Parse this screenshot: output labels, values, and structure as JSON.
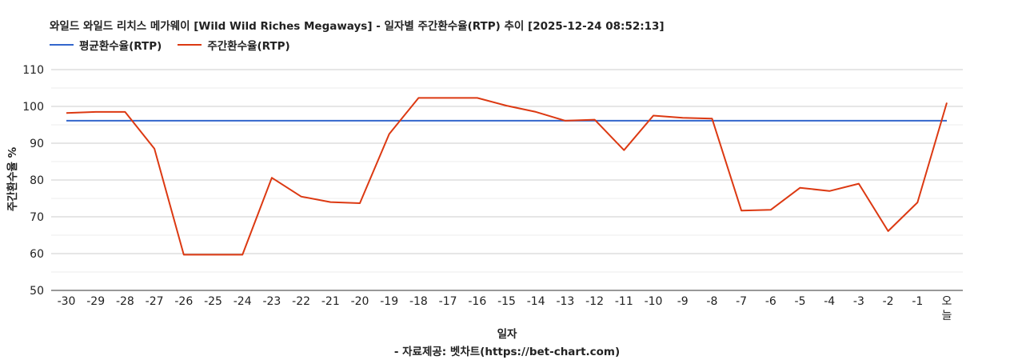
{
  "chart_data": {
    "type": "line",
    "title": "와일드 와일드 리치스 메가웨이 [Wild Wild Riches Megaways] - 일자별 주간환수율(RTP) 추이 [2025-12-24 08:52:13]",
    "xlabel": "일자",
    "ylabel": "주간환수율 %",
    "source": "- 자료제공: 벳차트(https://bet-chart.com)",
    "ylim": [
      50,
      110
    ],
    "yticks": [
      "50",
      "60",
      "70",
      "80",
      "90",
      "100",
      "110"
    ],
    "grid": true,
    "legend_position": "top-left",
    "categories": [
      "-30",
      "-29",
      "-28",
      "-27",
      "-26",
      "-25",
      "-24",
      "-23",
      "-22",
      "-21",
      "-20",
      "-19",
      "-18",
      "-17",
      "-16",
      "-15",
      "-14",
      "-13",
      "-12",
      "-11",
      "-10",
      "-9",
      "-8",
      "-7",
      "-6",
      "-5",
      "-4",
      "-3",
      "-2",
      "-1",
      "오늘"
    ],
    "series": [
      {
        "name": "평균환수율(RTP)",
        "color": "#3366cc",
        "values": [
          96.1,
          96.1,
          96.1,
          96.1,
          96.1,
          96.1,
          96.1,
          96.1,
          96.1,
          96.1,
          96.1,
          96.1,
          96.1,
          96.1,
          96.1,
          96.1,
          96.1,
          96.1,
          96.1,
          96.1,
          96.1,
          96.1,
          96.1,
          96.1,
          96.1,
          96.1,
          96.1,
          96.1,
          96.1,
          96.1,
          96.1
        ]
      },
      {
        "name": "주간환수율(RTP)",
        "color": "#dc3912",
        "values": [
          98.2,
          98.5,
          98.5,
          88.5,
          59.7,
          59.7,
          59.7,
          80.6,
          75.5,
          74.0,
          73.7,
          92.5,
          102.3,
          102.3,
          102.3,
          100.2,
          98.5,
          96.1,
          96.4,
          88.1,
          97.5,
          96.9,
          96.7,
          71.7,
          71.9,
          77.9,
          77.0,
          79.0,
          66.1,
          73.9,
          101.0
        ]
      }
    ]
  }
}
